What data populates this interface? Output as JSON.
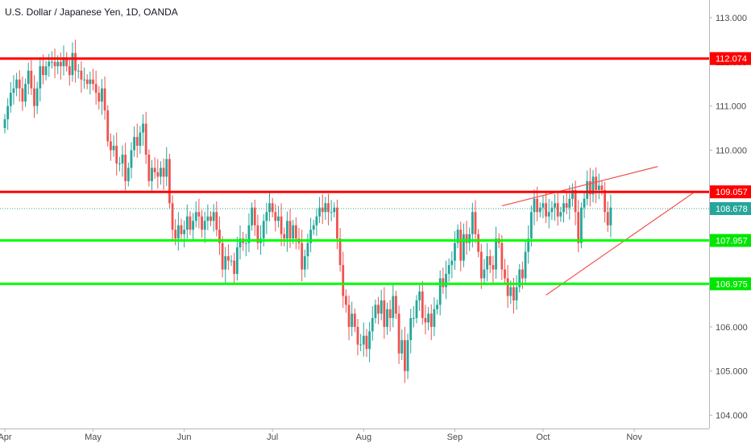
{
  "chart_data": {
    "type": "candlestick",
    "title": "U.S. Dollar / Japanese Yen, 1D, OANDA",
    "ylim": [
      103.7,
      113.4
    ],
    "y_ticks": [
      "113.000",
      "112.000",
      "111.000",
      "110.000",
      "109.000",
      "108.000",
      "107.000",
      "106.000",
      "105.000",
      "104.000"
    ],
    "y_tick_values": [
      113,
      112,
      111,
      110,
      109,
      108,
      107,
      106,
      105,
      104
    ],
    "x_labels": [
      "Apr",
      "May",
      "Jun",
      "Jul",
      "Aug",
      "Sep",
      "Oct",
      "Nov"
    ],
    "x_label_days": [
      0,
      30,
      61,
      91,
      122,
      153,
      183,
      214
    ],
    "last_price": {
      "value": 108.678,
      "label": "108.678"
    },
    "horizontal_lines": [
      {
        "value": 112.074,
        "label": "112.074",
        "color": "#ff0000"
      },
      {
        "value": 109.057,
        "label": "109.057",
        "color": "#ff0000"
      },
      {
        "value": 107.957,
        "label": "107.957",
        "color": "#00ff00"
      },
      {
        "value": 106.975,
        "label": "106.975",
        "color": "#00ff00"
      }
    ],
    "trend_lines": [
      {
        "from": {
          "day": 169,
          "value": 108.74
        },
        "to": {
          "day": 222,
          "value": 109.63
        }
      },
      {
        "from": {
          "day": 184,
          "value": 106.72
        },
        "to": {
          "day": 234,
          "value": 109.03
        }
      }
    ],
    "candles_close": [
      110.7,
      111.0,
      111.3,
      111.4,
      111.6,
      111.4,
      111.1,
      111.5,
      111.8,
      111.4,
      111.0,
      111.4,
      111.9,
      111.7,
      111.9,
      112.0,
      112.0,
      111.9,
      112.0,
      111.9,
      112.1,
      111.9,
      111.7,
      112.2,
      111.8,
      111.8,
      111.6,
      111.6,
      111.5,
      111.6,
      111.5,
      111.3,
      111.1,
      111.4,
      110.9,
      110.2,
      110.0,
      110.1,
      109.7,
      109.7,
      109.9,
      109.3,
      109.6,
      110.0,
      110.3,
      110.1,
      110.4,
      110.6,
      109.9,
      109.3,
      109.6,
      109.5,
      109.4,
      109.6,
      109.4,
      109.8,
      108.8,
      108.2,
      108.0,
      108.3,
      108.1,
      108.2,
      108.5,
      108.2,
      108.4,
      108.6,
      108.5,
      108.2,
      108.4,
      108.5,
      108.4,
      108.6,
      108.2,
      107.9,
      107.3,
      107.6,
      107.5,
      107.5,
      107.2,
      107.8,
      108.0,
      107.9,
      107.9,
      108.3,
      108.7,
      108.3,
      107.9,
      108.0,
      108.4,
      108.6,
      108.8,
      108.6,
      108.4,
      108.5,
      108.1,
      108.0,
      108.4,
      108.0,
      108.3,
      108.0,
      107.9,
      107.3,
      107.6,
      107.9,
      108.2,
      108.3,
      108.5,
      108.7,
      108.6,
      108.8,
      108.6,
      108.6,
      108.7,
      108.0,
      107.4,
      106.7,
      106.5,
      106.0,
      106.3,
      106.0,
      105.6,
      105.6,
      105.8,
      105.5,
      105.9,
      106.2,
      106.5,
      106.3,
      106.6,
      106.0,
      106.4,
      106.2,
      106.7,
      106.3,
      105.4,
      105.7,
      105.0,
      105.7,
      106.2,
      106.2,
      106.6,
      106.8,
      106.2,
      106.1,
      106.3,
      106.0,
      106.4,
      106.5,
      107.1,
      106.9,
      107.2,
      107.4,
      107.5,
      107.9,
      108.2,
      107.5,
      108.1,
      107.9,
      108.1,
      108.6,
      108.1,
      107.7,
      107.1,
      107.3,
      107.6,
      107.4,
      107.3,
      108.0,
      107.9,
      107.3,
      107.1,
      106.7,
      106.9,
      106.6,
      106.9,
      107.3,
      107.1,
      107.7,
      108.0,
      108.6,
      108.9,
      108.6,
      108.7,
      108.8,
      108.5,
      108.6,
      108.7,
      108.8,
      108.5,
      108.6,
      108.8,
      108.7,
      108.9,
      109.1,
      108.6,
      107.9,
      108.7,
      108.9,
      109.3,
      109.0,
      109.4,
      109.1,
      109.2,
      109.1,
      108.6,
      108.3,
      108.7
    ]
  }
}
